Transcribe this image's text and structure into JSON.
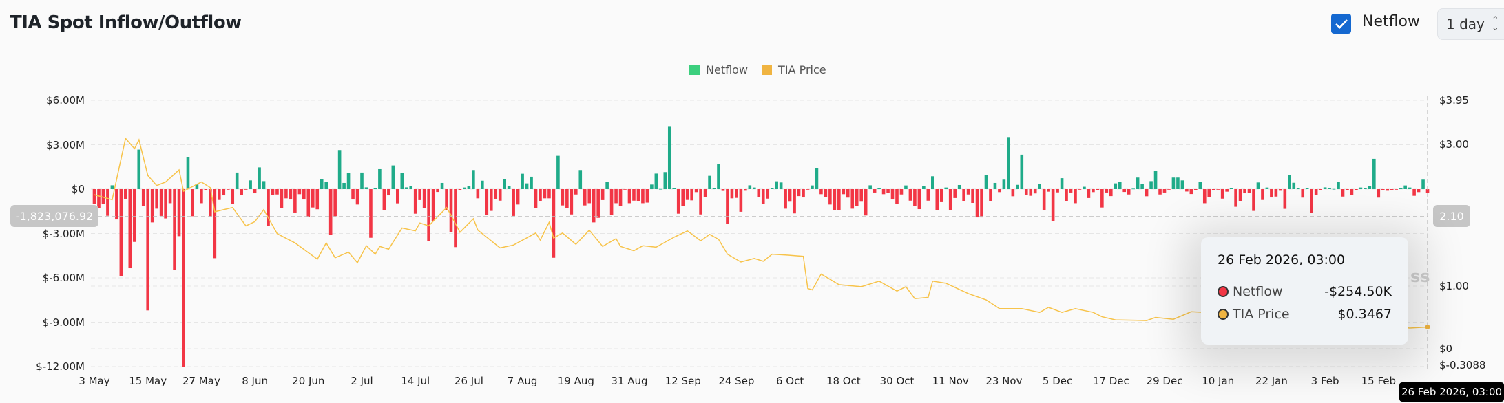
{
  "header": {
    "title": "TIA Spot Inflow/Outflow",
    "netflow_checkbox": {
      "label": "Netflow",
      "checked": true
    },
    "interval_select": {
      "value": "1 day"
    }
  },
  "colors": {
    "inflow": "#1fab89",
    "outflow": "#f23645",
    "price": "#f7c34a",
    "legend_netflow": "#3ccf7e",
    "legend_price": "#f0b441",
    "checkbox": "#1468d0"
  },
  "crosshair": {
    "left_value": "-1,823,076.92",
    "right_value": "2.10",
    "x_value": "26 Feb 2026, 03:00"
  },
  "tooltip": {
    "date": "26 Feb 2026, 03:00",
    "rows": [
      {
        "name": "Netflow",
        "value": "-$254.50K",
        "color": "#f23645"
      },
      {
        "name": "TIA Price",
        "value": "$0.3467",
        "color": "#f0b441"
      }
    ]
  },
  "watermark": "ss",
  "chart_data": {
    "type": "bar+line",
    "legend": [
      "Netflow",
      "TIA Price"
    ],
    "legend_position": "top-center",
    "grid": true,
    "left_axis": {
      "ticks": [
        "$6.00M",
        "$3.00M",
        "$0",
        "$-3.00M",
        "$-6.00M",
        "$-9.00M",
        "$-12.00M"
      ],
      "tick_values": [
        6,
        3,
        0,
        -3,
        -6,
        -9,
        -12
      ],
      "unit": "USD millions",
      "ylim": [
        -12,
        6
      ]
    },
    "right_axis": {
      "ticks": [
        "$3.95",
        "$3.00",
        "$1.00",
        "$0",
        "$-0.3088"
      ],
      "tick_values": [
        3.95,
        3.0,
        1.0,
        0,
        -0.3088
      ],
      "ylim": [
        -0.3088,
        3.95
      ]
    },
    "x_ticks": [
      "3 May",
      "15 May",
      "27 May",
      "8 Jun",
      "20 Jun",
      "2 Jul",
      "14 Jul",
      "26 Jul",
      "7 Aug",
      "19 Aug",
      "31 Aug",
      "12 Sep",
      "24 Sep",
      "6 Oct",
      "18 Oct",
      "30 Oct",
      "11 Nov",
      "23 Nov",
      "5 Dec",
      "17 Dec",
      "29 Dec",
      "10 Jan",
      "22 Jan",
      "3 Feb",
      "15 Feb"
    ],
    "netflow": {
      "name": "Netflow",
      "start": "2025-05-03",
      "end": "2026-02-26",
      "interval": "1 day",
      "unit": "USD millions",
      "values": [
        -1.0,
        -1.3,
        -1.0,
        -1.8,
        0.26,
        -2.05,
        -5.9,
        -0.65,
        -5.35,
        -3.57,
        2.67,
        -1.13,
        -8.2,
        -2.25,
        -1.32,
        -1.81,
        -1.98,
        -0.95,
        -5.47,
        -3.18,
        -12.0,
        2.17,
        -1.83,
        0.36,
        -0.95,
        -0.05,
        -1.83,
        -4.67,
        -0.73,
        -0.42,
        -0.03,
        -1.0,
        1.12,
        -0.39,
        -0.03,
        0.59,
        -0.28,
        1.47,
        0.54,
        -2.5,
        -0.4,
        -0.36,
        -1.27,
        -0.62,
        -0.7,
        -1.58,
        -0.34,
        -0.7,
        -1.86,
        -1.24,
        -1.36,
        0.65,
        0.47,
        -3.07,
        -1.83,
        2.64,
        0.42,
        1.07,
        -0.7,
        -1.04,
        1.12,
        0.12,
        -3.29,
        0.08,
        1.35,
        -1.4,
        -0.42,
        1.6,
        -0.96,
        1.07,
        0.12,
        0.2,
        -1.66,
        -0.74,
        -1.27,
        -3.49,
        -2.17,
        -0.19,
        0.42,
        -1.44,
        -2.91,
        -3.92,
        -0.08,
        0.11,
        0.22,
        1.29,
        -0.62,
        0.57,
        -1.75,
        -1.47,
        -0.65,
        -0.78,
        0.67,
        0.22,
        -1.81,
        -1.04,
        1.04,
        0.39,
        0.84,
        -1.26,
        -0.79,
        -0.62,
        -0.62,
        -4.64,
        2.25,
        -1.1,
        -1.29,
        -1.71,
        -0.36,
        1.29,
        -1.1,
        -0.95,
        -2.25,
        -1.94,
        -0.74,
        0.5,
        -1.75,
        -0.95,
        -1.13,
        -0.03,
        -0.95,
        -0.78,
        -0.81,
        -0.95,
        -0.91,
        0.31,
        1.05,
        0.01,
        1.15,
        4.26,
        0.09,
        -1.66,
        -1.16,
        -0.73,
        -0.76,
        -0.2,
        -1.71,
        -0.54,
        0.9,
        0.05,
        1.71,
        -0.12,
        -2.34,
        -0.62,
        -0.59,
        -1.53,
        -0.11,
        0.26,
        0.11,
        -0.54,
        -0.98,
        -0.64,
        0.08,
        0.53,
        0.45,
        -1.32,
        -0.85,
        -1.64,
        -0.47,
        -0.56,
        -0.02,
        0.25,
        1.44,
        -0.34,
        -0.54,
        -1.04,
        -1.43,
        -1.43,
        -0.34,
        -0.57,
        -1.32,
        -1.13,
        -0.85,
        -1.78,
        0.26,
        -0.23,
        0.08,
        -0.34,
        -0.25,
        -0.7,
        -1.0,
        -0.36,
        0.25,
        -0.78,
        -1.16,
        -1.35,
        0.19,
        -0.78,
        0.87,
        -1.41,
        -0.88,
        0.11,
        -1.43,
        -0.6,
        0.28,
        -0.82,
        -0.36,
        -0.93,
        -1.91,
        -1.91,
        0.93,
        -0.81,
        0.42,
        -0.2,
        0.64,
        3.52,
        -0.48,
        0.29,
        2.33,
        -0.39,
        -0.45,
        -0.29,
        0.36,
        -1.43,
        -0.17,
        -2.16,
        -0.22,
        0.74,
        -0.81,
        -0.23,
        -0.95,
        -0.03,
        0.16,
        -0.6,
        -0.2,
        -0.08,
        -1.24,
        -0.23,
        -0.47,
        0.39,
        0.51,
        -0.19,
        -0.36,
        0.03,
        0.78,
        0.36,
        -0.48,
        0.54,
        1.21,
        -0.36,
        -0.23,
        -0.03,
        0.78,
        0.78,
        0.59,
        -0.16,
        -0.33,
        -0.05,
        0.5,
        -0.95,
        -0.54,
        -0.08,
        -0.02,
        -0.64,
        -0.17,
        0.05,
        -1.19,
        -0.82,
        -0.28,
        -0.26,
        -1.47,
        0.45,
        -0.73,
        0.11,
        -0.56,
        -0.5,
        -0.11,
        -1.33,
        0.96,
        0.43,
        0.06,
        -0.57,
        0.06,
        -1.6,
        -0.4,
        -0.05,
        0.12,
        0.09,
        0.01,
        0.48,
        -0.5,
        -0.05,
        -0.39,
        -0.08,
        0.11,
        0.08,
        0.22,
        2.05,
        -0.57,
        -0.05,
        -0.11,
        -0.08,
        -0.03,
        0.05,
        0.25,
        0.11,
        -0.45,
        -0.2,
        0.64,
        -0.2545
      ]
    },
    "price": {
      "name": "TIA Price",
      "unit": "USD",
      "points": [
        [
          "2025-05-03",
          2.29
        ],
        [
          "2025-05-07",
          2.22
        ],
        [
          "2025-05-10",
          3.13
        ],
        [
          "2025-05-12",
          2.94
        ],
        [
          "2025-05-13",
          3.1
        ],
        [
          "2025-05-15",
          2.56
        ],
        [
          "2025-05-17",
          2.42
        ],
        [
          "2025-05-19",
          2.47
        ],
        [
          "2025-05-22",
          2.64
        ],
        [
          "2025-05-23",
          2.34
        ],
        [
          "2025-05-27",
          2.47
        ],
        [
          "2025-05-29",
          2.39
        ],
        [
          "2025-05-30",
          2.05
        ],
        [
          "2025-06-03",
          2.11
        ],
        [
          "2025-06-06",
          1.85
        ],
        [
          "2025-06-08",
          1.91
        ],
        [
          "2025-06-10",
          2.08
        ],
        [
          "2025-06-13",
          1.74
        ],
        [
          "2025-06-17",
          1.61
        ],
        [
          "2025-06-22",
          1.38
        ],
        [
          "2025-06-24",
          1.61
        ],
        [
          "2025-06-26",
          1.4
        ],
        [
          "2025-06-29",
          1.48
        ],
        [
          "2025-07-01",
          1.33
        ],
        [
          "2025-07-03",
          1.57
        ],
        [
          "2025-07-05",
          1.45
        ],
        [
          "2025-07-06",
          1.56
        ],
        [
          "2025-07-08",
          1.52
        ],
        [
          "2025-07-11",
          1.82
        ],
        [
          "2025-07-14",
          1.78
        ],
        [
          "2025-07-15",
          1.89
        ],
        [
          "2025-07-17",
          1.85
        ],
        [
          "2025-07-21",
          2.11
        ],
        [
          "2025-07-22",
          2.0
        ],
        [
          "2025-07-24",
          1.76
        ],
        [
          "2025-07-27",
          1.95
        ],
        [
          "2025-07-28",
          1.79
        ],
        [
          "2025-08-02",
          1.54
        ],
        [
          "2025-08-05",
          1.58
        ],
        [
          "2025-08-10",
          1.75
        ],
        [
          "2025-08-11",
          1.65
        ],
        [
          "2025-08-13",
          1.9
        ],
        [
          "2025-08-14",
          1.68
        ],
        [
          "2025-08-16",
          1.75
        ],
        [
          "2025-08-19",
          1.59
        ],
        [
          "2025-08-22",
          1.79
        ],
        [
          "2025-08-25",
          1.56
        ],
        [
          "2025-08-28",
          1.67
        ],
        [
          "2025-08-29",
          1.56
        ],
        [
          "2025-09-01",
          1.5
        ],
        [
          "2025-09-03",
          1.57
        ],
        [
          "2025-09-06",
          1.55
        ],
        [
          "2025-09-10",
          1.69
        ],
        [
          "2025-09-13",
          1.78
        ],
        [
          "2025-09-16",
          1.64
        ],
        [
          "2025-09-18",
          1.73
        ],
        [
          "2025-09-20",
          1.66
        ],
        [
          "2025-09-22",
          1.45
        ],
        [
          "2025-09-25",
          1.34
        ],
        [
          "2025-09-28",
          1.39
        ],
        [
          "2025-09-30",
          1.35
        ],
        [
          "2025-10-02",
          1.45
        ],
        [
          "2025-10-05",
          1.44
        ],
        [
          "2025-10-09",
          1.42
        ],
        [
          "2025-10-10",
          0.96
        ],
        [
          "2025-10-11",
          0.94
        ],
        [
          "2025-10-13",
          1.17
        ],
        [
          "2025-10-17",
          1.02
        ],
        [
          "2025-10-22",
          0.99
        ],
        [
          "2025-10-26",
          1.07
        ],
        [
          "2025-10-30",
          0.92
        ],
        [
          "2025-11-01",
          0.99
        ],
        [
          "2025-11-03",
          0.8
        ],
        [
          "2025-11-06",
          0.82
        ],
        [
          "2025-11-07",
          1.07
        ],
        [
          "2025-11-10",
          1.04
        ],
        [
          "2025-11-15",
          0.88
        ],
        [
          "2025-11-19",
          0.78
        ],
        [
          "2025-11-22",
          0.64
        ],
        [
          "2025-11-27",
          0.64
        ],
        [
          "2025-12-01",
          0.58
        ],
        [
          "2025-12-03",
          0.66
        ],
        [
          "2025-12-06",
          0.58
        ],
        [
          "2025-12-09",
          0.64
        ],
        [
          "2025-12-13",
          0.58
        ],
        [
          "2025-12-15",
          0.51
        ],
        [
          "2025-12-18",
          0.46
        ],
        [
          "2025-12-25",
          0.45
        ],
        [
          "2025-12-27",
          0.5
        ],
        [
          "2025-12-31",
          0.47
        ],
        [
          "2026-01-04",
          0.59
        ],
        [
          "2026-01-15",
          0.55
        ],
        [
          "2026-01-30",
          0.45
        ],
        [
          "2026-02-15",
          0.38
        ],
        [
          "2026-02-22",
          0.33
        ],
        [
          "2026-02-26",
          0.3467
        ]
      ]
    }
  }
}
